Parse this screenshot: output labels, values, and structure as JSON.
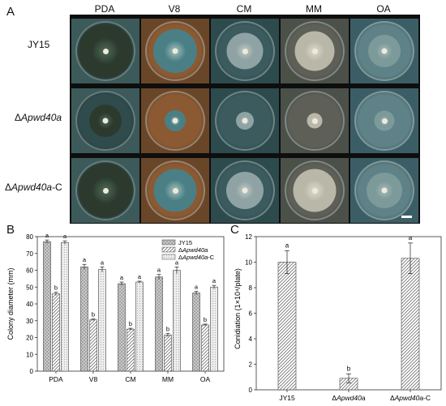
{
  "panel_a": {
    "letter": "A",
    "media": [
      "PDA",
      "V8",
      "CM",
      "MM",
      "OA"
    ],
    "strains": [
      {
        "prefix": "",
        "name": "JY15",
        "suffix": ""
      },
      {
        "prefix": "Δ",
        "name": "Apwd40a",
        "suffix": ""
      },
      {
        "prefix": "Δ",
        "name": "Apwd40a",
        "suffix": "-C"
      }
    ],
    "tile_colors": {
      "PDA": {
        "bg": "#3d5a5a",
        "plate": "#2f4b4b",
        "colony": "#2c3a2e",
        "rim": "#4e6b57"
      },
      "V8": {
        "bg": "#6a4628",
        "plate": "#8c5a32",
        "colony": "#4a7f86",
        "rim": "#a4c2b9"
      },
      "CM": {
        "bg": "#2d4a4d",
        "plate": "#3b5b5e",
        "colony": "#8fa3a4",
        "rim": "#c0cbc6"
      },
      "MM": {
        "bg": "#4b5049",
        "plate": "#5e6058",
        "colony": "#b9b7a8",
        "rim": "#dddccf"
      },
      "OA": {
        "bg": "#3b5e66",
        "plate": "#5e8287",
        "colony": "#7d9a9a",
        "rim": "#a7bcbb"
      }
    },
    "colony_fraction": [
      [
        0.77,
        0.62,
        0.52,
        0.56,
        0.46
      ],
      [
        0.46,
        0.3,
        0.25,
        0.22,
        0.28
      ],
      [
        0.76,
        0.6,
        0.53,
        0.6,
        0.5
      ]
    ]
  },
  "panel_b": {
    "letter": "B",
    "chart_data": {
      "type": "bar",
      "categories": [
        "PDA",
        "V8",
        "CM",
        "MM",
        "OA"
      ],
      "ylabel": "Colony diameter (mm)",
      "ylim": [
        0,
        80
      ],
      "yticks": [
        0,
        10,
        20,
        30,
        40,
        50,
        60,
        70,
        80
      ],
      "series": [
        {
          "name": "JY15",
          "name_prefix": "",
          "name_italic": "",
          "name_suffix": "",
          "fill": "#c8c8c8",
          "hatch": "cross",
          "values": [
            77,
            62,
            52,
            56,
            46.5
          ],
          "errors": [
            1,
            1.5,
            1,
            1.5,
            1
          ],
          "letters": [
            "a",
            "a",
            "a",
            "a",
            "a"
          ]
        },
        {
          "name": "ΔApwd40a",
          "name_prefix": "Δ",
          "name_italic": "Apwd40a",
          "name_suffix": "",
          "fill": "#ffffff",
          "hatch": "diag",
          "values": [
            46,
            30.5,
            25,
            21.5,
            27.5
          ],
          "errors": [
            1,
            0.5,
            0.5,
            1,
            0.5
          ],
          "letters": [
            "b",
            "b",
            "b",
            "b",
            "b"
          ]
        },
        {
          "name": "ΔApwd40a-C",
          "name_prefix": "Δ",
          "name_italic": "Apwd40a",
          "name_suffix": "-C",
          "fill": "#e8e8e8",
          "hatch": "dots",
          "values": [
            76.5,
            60.5,
            53,
            60,
            50
          ],
          "errors": [
            1,
            1.5,
            0.5,
            2,
            1
          ],
          "letters": [
            "a",
            "a",
            "a",
            "a",
            "a"
          ]
        }
      ],
      "legend": "top-right"
    }
  },
  "panel_c": {
    "letter": "C",
    "chart_data": {
      "type": "bar",
      "categories": [
        "JY15",
        "ΔApwd40a",
        "ΔApwd40a-C"
      ],
      "category_parts": [
        {
          "prefix": "",
          "italic": "",
          "plain": "JY15",
          "suffix": ""
        },
        {
          "prefix": "Δ",
          "italic": "Apwd40a",
          "plain": "",
          "suffix": ""
        },
        {
          "prefix": "Δ",
          "italic": "Apwd40a",
          "plain": "",
          "suffix": "-C"
        }
      ],
      "ylabel": "Conidiation (1×10⁴/plate)",
      "ylim": [
        0,
        12
      ],
      "yticks": [
        0,
        2,
        4,
        6,
        8,
        10,
        12
      ],
      "values": [
        10,
        0.9,
        10.3
      ],
      "errors": [
        0.9,
        0.35,
        1.2
      ],
      "letters": [
        "a",
        "b",
        "a"
      ]
    }
  }
}
